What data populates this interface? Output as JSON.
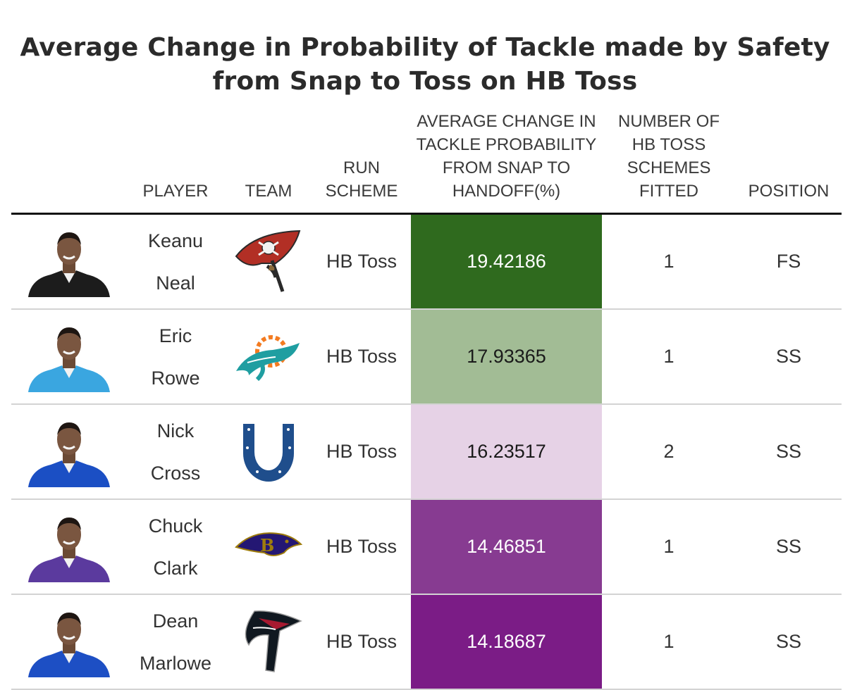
{
  "chart_data": {
    "type": "table",
    "title_lines": [
      "Average Change in Probability of Tackle made by Safety",
      "from Snap to Toss on HB Toss"
    ],
    "columns": [
      {
        "key": "headshot",
        "label": ""
      },
      {
        "key": "player",
        "label": "PLAYER"
      },
      {
        "key": "team",
        "label": "TEAM"
      },
      {
        "key": "scheme",
        "label": "RUN SCHEME"
      },
      {
        "key": "change",
        "label": "AVERAGE CHANGE IN TACKLE PROBABILITY FROM SNAP TO HANDOFF(%)"
      },
      {
        "key": "fitted",
        "label": "NUMBER OF HB TOSS SCHEMES FITTED"
      },
      {
        "key": "position",
        "label": "POSITION"
      }
    ],
    "rows": [
      {
        "player_first": "Keanu",
        "player_last": "Neal",
        "team": "buccaneers-logo",
        "scheme": "HB Toss",
        "change": "19.42186",
        "fitted": "1",
        "position": "FS",
        "cell_color": "#2f6a1e",
        "jersey_color": "#1c1c1c"
      },
      {
        "player_first": "Eric",
        "player_last": "Rowe",
        "team": "dolphins-logo",
        "scheme": "HB Toss",
        "change": "17.93365",
        "fitted": "1",
        "position": "SS",
        "cell_color": "#a2bc95",
        "jersey_color": "#3aa6e0"
      },
      {
        "player_first": "Nick",
        "player_last": "Cross",
        "team": "colts-logo",
        "scheme": "HB Toss",
        "change": "16.23517",
        "fitted": "2",
        "position": "SS",
        "cell_color": "#e6d2e6",
        "jersey_color": "#1b4fc4"
      },
      {
        "player_first": "Chuck",
        "player_last": "Clark",
        "team": "ravens-logo",
        "scheme": "HB Toss",
        "change": "14.46851",
        "fitted": "1",
        "position": "SS",
        "cell_color": "#873b91",
        "jersey_color": "#5b3a9e"
      },
      {
        "player_first": "Dean",
        "player_last": "Marlowe",
        "team": "falcons-logo",
        "scheme": "HB Toss",
        "change": "14.18687",
        "fitted": "1",
        "position": "SS",
        "cell_color": "#7b1c86",
        "jersey_color": "#1d4fc4"
      }
    ]
  }
}
